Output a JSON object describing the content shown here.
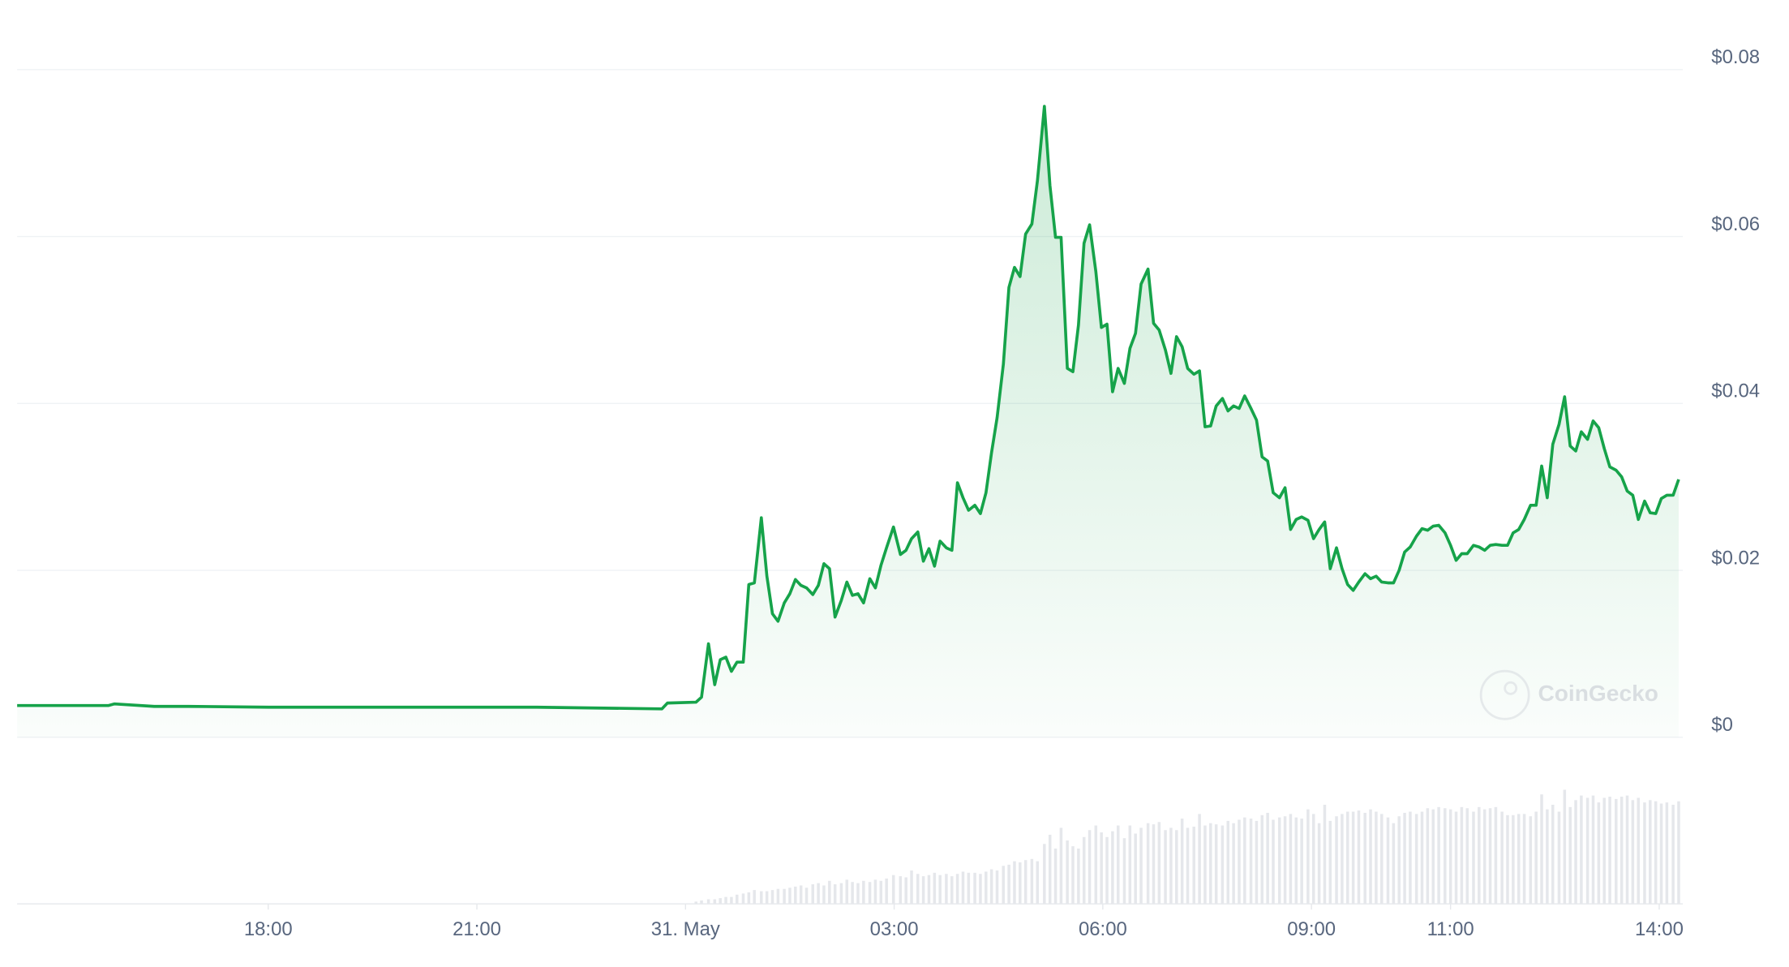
{
  "chart_data": {
    "type": "line",
    "watermark": "CoinGecko",
    "color": "#16a34a",
    "volume_color": "#e5e7eb",
    "grid": true,
    "xlim": [
      14.39,
      38.34
    ],
    "xticks": [
      {
        "value": 18,
        "label": "18:00"
      },
      {
        "value": 21,
        "label": "21:00"
      },
      {
        "value": 24,
        "label": "31. May"
      },
      {
        "value": 27,
        "label": "03:00"
      },
      {
        "value": 30,
        "label": "06:00"
      },
      {
        "value": 33,
        "label": "09:00"
      },
      {
        "value": 35,
        "label": "11:00"
      },
      {
        "value": 38,
        "label": "14:00"
      }
    ],
    "ylim": [
      0,
      0.08
    ],
    "yticks": [
      {
        "value": 0,
        "label": "$0"
      },
      {
        "value": 0.02,
        "label": "$0.02"
      },
      {
        "value": 0.04,
        "label": "$0.04"
      },
      {
        "value": 0.06,
        "label": "$0.06"
      },
      {
        "value": 0.08,
        "label": "$0.08"
      }
    ],
    "x": [
      14.39,
      15.7,
      15.79,
      16.36,
      16.85,
      18.0,
      18.08,
      20.38,
      20.54,
      21.86,
      23.66,
      23.74,
      24.15,
      24.23,
      24.33,
      24.42,
      24.5,
      24.58,
      24.66,
      24.74,
      24.83,
      24.91,
      24.99,
      25.09,
      25.17,
      25.25,
      25.33,
      25.42,
      25.5,
      25.58,
      25.66,
      25.74,
      25.83,
      25.91,
      25.99,
      26.07,
      26.15,
      26.24,
      26.32,
      26.4,
      26.48,
      26.56,
      26.65,
      26.73,
      26.81,
      26.89,
      26.99,
      27.09,
      27.17,
      27.25,
      27.34,
      27.42,
      27.5,
      27.58,
      27.66,
      27.75,
      27.83,
      27.91,
      27.99,
      28.07,
      28.16,
      28.24,
      28.32,
      28.4,
      28.48,
      28.57,
      28.65,
      28.73,
      28.81,
      28.89,
      28.98,
      29.06,
      29.16,
      29.24,
      29.32,
      29.4,
      29.49,
      29.57,
      29.65,
      29.73,
      29.81,
      29.9,
      29.98,
      30.06,
      30.14,
      30.22,
      30.31,
      30.39,
      30.47,
      30.55,
      30.65,
      30.73,
      30.81,
      30.9,
      30.98,
      31.06,
      31.14,
      31.22,
      31.31,
      31.39,
      31.47,
      31.55,
      31.63,
      31.72,
      31.8,
      31.88,
      31.96,
      32.04,
      32.13,
      32.21,
      32.29,
      32.37,
      32.45,
      32.54,
      32.62,
      32.7,
      32.78,
      32.86,
      32.95,
      33.03,
      33.11,
      33.19,
      33.27,
      33.36,
      33.44,
      33.52,
      33.6,
      33.68,
      33.77,
      33.85,
      33.93,
      34.01,
      34.1,
      34.18,
      34.26,
      34.34,
      34.42,
      34.51,
      34.59,
      34.67,
      34.75,
      34.83,
      34.92,
      35.0,
      35.08,
      35.16,
      35.24,
      35.33,
      35.41,
      35.49,
      35.57,
      35.65,
      35.74,
      35.82,
      35.9,
      35.98,
      36.06,
      36.15,
      36.23,
      36.31,
      36.39,
      36.47,
      36.56,
      36.64,
      36.72,
      36.8,
      36.88,
      36.97,
      37.05,
      37.13,
      37.21,
      37.29,
      37.38,
      37.46,
      37.54,
      37.62,
      37.7,
      37.79,
      37.87,
      37.95,
      38.03,
      38.11,
      38.2,
      38.28
    ],
    "values": [
      0.0038,
      0.0038,
      0.004,
      0.0037,
      0.0037,
      0.0036,
      0.0036,
      0.0036,
      0.0036,
      0.0036,
      0.0034,
      0.0041,
      0.0042,
      0.0048,
      0.0112,
      0.0063,
      0.0093,
      0.0096,
      0.0079,
      0.009,
      0.009,
      0.0183,
      0.0185,
      0.0263,
      0.0193,
      0.0148,
      0.0139,
      0.0161,
      0.0172,
      0.0189,
      0.0182,
      0.0179,
      0.0171,
      0.0182,
      0.0208,
      0.0202,
      0.0144,
      0.0164,
      0.0186,
      0.017,
      0.0172,
      0.0161,
      0.019,
      0.0179,
      0.0206,
      0.0227,
      0.0252,
      0.0219,
      0.0224,
      0.0238,
      0.0246,
      0.0211,
      0.0226,
      0.0205,
      0.0235,
      0.0227,
      0.0224,
      0.0305,
      0.0287,
      0.0272,
      0.0278,
      0.0268,
      0.0293,
      0.0341,
      0.0383,
      0.0447,
      0.0539,
      0.0563,
      0.0552,
      0.0603,
      0.0615,
      0.0667,
      0.0756,
      0.0661,
      0.0599,
      0.0599,
      0.0442,
      0.0438,
      0.0494,
      0.0592,
      0.0614,
      0.0558,
      0.0491,
      0.0495,
      0.0414,
      0.0442,
      0.0424,
      0.0466,
      0.0484,
      0.0543,
      0.0561,
      0.0496,
      0.0488,
      0.0464,
      0.0436,
      0.048,
      0.0468,
      0.0442,
      0.0435,
      0.0439,
      0.0372,
      0.0373,
      0.0397,
      0.0406,
      0.0391,
      0.0397,
      0.0394,
      0.0409,
      0.0394,
      0.038,
      0.0336,
      0.0331,
      0.0293,
      0.0287,
      0.0299,
      0.0249,
      0.0261,
      0.0264,
      0.026,
      0.0238,
      0.0249,
      0.0258,
      0.0202,
      0.0227,
      0.0202,
      0.0183,
      0.0176,
      0.0186,
      0.0196,
      0.019,
      0.0193,
      0.0186,
      0.0185,
      0.0185,
      0.02,
      0.0222,
      0.0228,
      0.0241,
      0.025,
      0.0248,
      0.0253,
      0.0254,
      0.0245,
      0.023,
      0.0212,
      0.022,
      0.022,
      0.023,
      0.0228,
      0.0224,
      0.023,
      0.0231,
      0.023,
      0.023,
      0.0245,
      0.0249,
      0.0261,
      0.0278,
      0.0278,
      0.0325,
      0.0287,
      0.0351,
      0.0375,
      0.0408,
      0.0349,
      0.0343,
      0.0366,
      0.0357,
      0.0379,
      0.0371,
      0.0346,
      0.0324,
      0.032,
      0.0312,
      0.0295,
      0.029,
      0.0261,
      0.0283,
      0.0269,
      0.0268,
      0.0286,
      0.029,
      0.029,
      0.0309
    ],
    "volumes": [
      null,
      null,
      null,
      null,
      null,
      null,
      null,
      null,
      null,
      null,
      null,
      null,
      2,
      3,
      4,
      4,
      5,
      6,
      6,
      8,
      9,
      10,
      12,
      11,
      11,
      12,
      13,
      13,
      14,
      15,
      16,
      14,
      17,
      18,
      16,
      20,
      17,
      18,
      21,
      19,
      18,
      20,
      19,
      21,
      20,
      22,
      25,
      24,
      23,
      29,
      26,
      24,
      25,
      27,
      25,
      26,
      24,
      26,
      28,
      27,
      27,
      26,
      28,
      30,
      29,
      33,
      34,
      37,
      36,
      38,
      39,
      37,
      52,
      60,
      48,
      66,
      55,
      50,
      48,
      58,
      64,
      68,
      62,
      58,
      63,
      68,
      57,
      68,
      61,
      66,
      70,
      69,
      71,
      64,
      66,
      64,
      74,
      66,
      67,
      78,
      68,
      70,
      69,
      68,
      72,
      70,
      73,
      75,
      74,
      72,
      77,
      79,
      73,
      75,
      76,
      78,
      75,
      74,
      82,
      78,
      70,
      86,
      72,
      76,
      78,
      80,
      80,
      81,
      79,
      82,
      80,
      78,
      75,
      70,
      76,
      79,
      80,
      78,
      80,
      83,
      82,
      84,
      83,
      82,
      80,
      84,
      83,
      80,
      84,
      82,
      83,
      84,
      80,
      77,
      77,
      78,
      78,
      76,
      80,
      95,
      82,
      86,
      80,
      99,
      84,
      90,
      94,
      92,
      94,
      88,
      92,
      93,
      91,
      93,
      94,
      90,
      92,
      88,
      90,
      89,
      87,
      88,
      86,
      89
    ]
  }
}
